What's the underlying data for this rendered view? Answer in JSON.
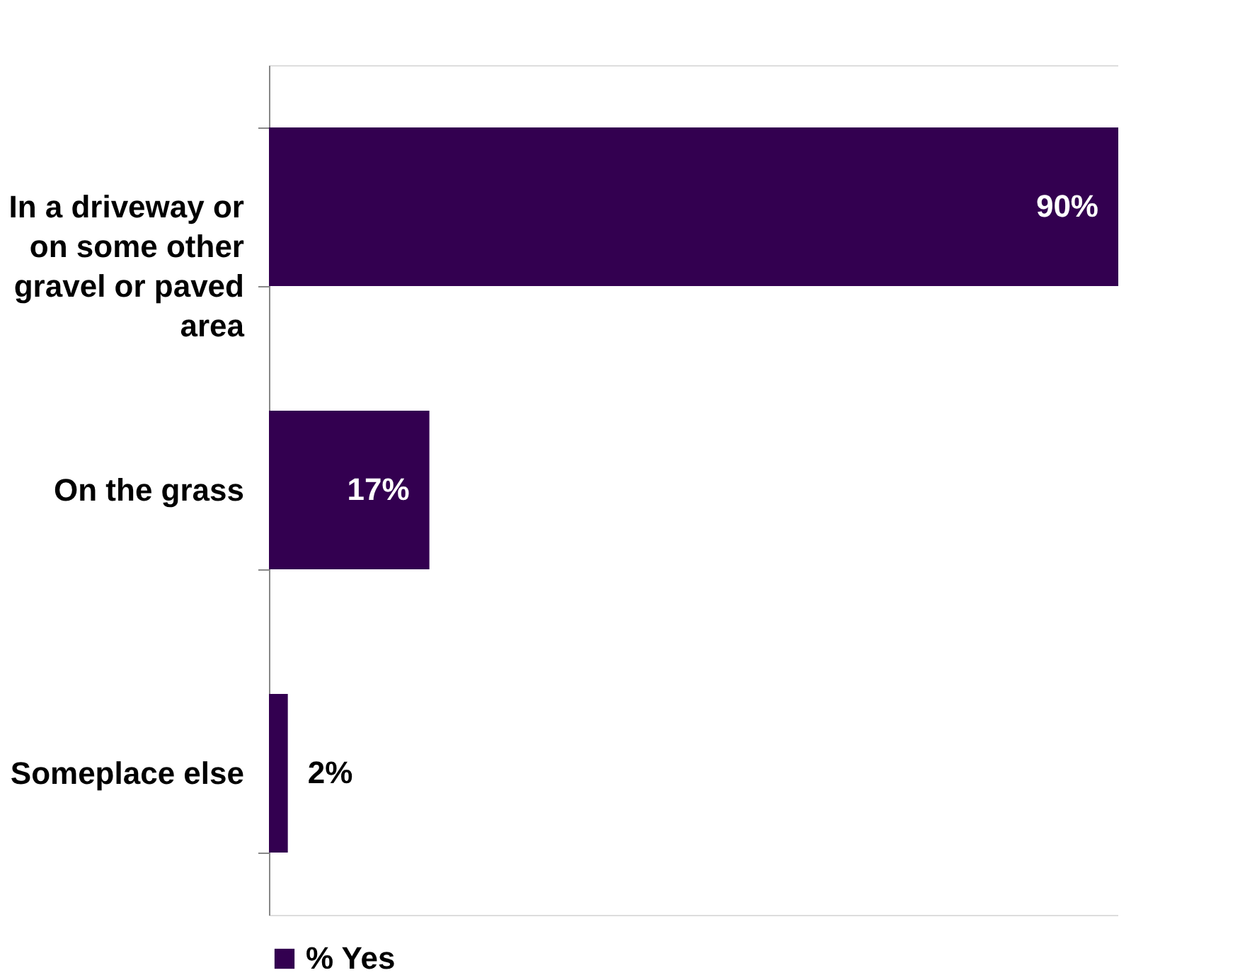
{
  "chart_data": {
    "type": "bar",
    "orientation": "horizontal",
    "categories": [
      "In a driveway or on some other gravel or paved area",
      "On the grass",
      "Someplace else"
    ],
    "series": [
      {
        "name": "% Yes",
        "color": "#330050",
        "values": [
          90,
          17,
          2
        ],
        "value_labels": [
          "90%",
          "17%",
          "2%"
        ]
      }
    ],
    "legend": "bottom"
  }
}
